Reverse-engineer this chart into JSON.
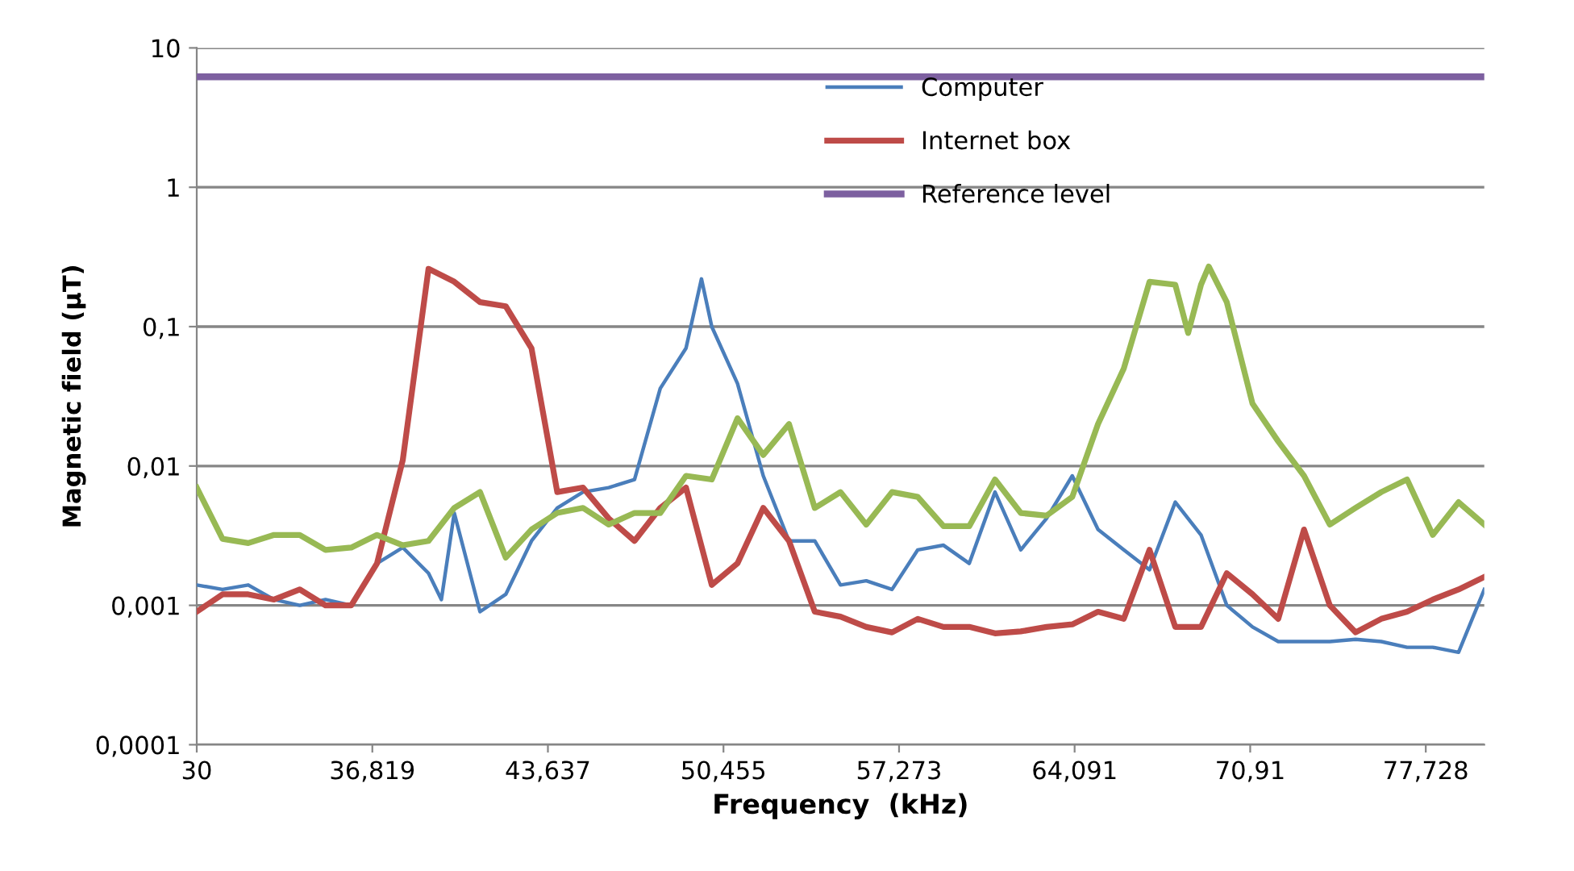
{
  "chart_data": {
    "type": "line",
    "xlabel": "Frequency  (kHz)",
    "ylabel": "Magnetic field (µT)",
    "log": "y",
    "grid": "y",
    "legend": "top",
    "marker": "none",
    "line_style": "solid",
    "xlim": [
      30,
      80
    ],
    "ylim": [
      0.0001,
      10
    ],
    "xticks": [
      30,
      {
        "value": 36.819,
        "label": "36,819"
      },
      {
        "value": 43.637,
        "label": "43,637"
      },
      {
        "value": 50.455,
        "label": "50,455"
      },
      {
        "value": 57.273,
        "label": "57,273"
      },
      {
        "value": 64.091,
        "label": "64,091"
      },
      {
        "value": 70.91,
        "label": "70,91"
      },
      {
        "value": 77.728,
        "label": "77,728"
      }
    ],
    "yticks": [
      {
        "value": 0.0001,
        "label": "0,0001"
      },
      {
        "value": 0.001,
        "label": "0,001"
      },
      {
        "value": 0.01,
        "label": "0,01"
      },
      {
        "value": 0.1,
        "label": "0,1"
      },
      1,
      10
    ],
    "series": [
      {
        "name": "Computer",
        "color": "#4a7ebb",
        "x": [
          30,
          31,
          32,
          33,
          34,
          35,
          36,
          37,
          38,
          39,
          39.5,
          40,
          41,
          42,
          43,
          44,
          45,
          46,
          47,
          48,
          49,
          49.6,
          50,
          51,
          52,
          53,
          54,
          55,
          56,
          57,
          58,
          59,
          60,
          61,
          62,
          63,
          64,
          65,
          66,
          67,
          68,
          69,
          70,
          71,
          72,
          73,
          74,
          75,
          76,
          77,
          78,
          79,
          80
        ],
        "values": [
          0.0014,
          0.0013,
          0.0014,
          0.0011,
          0.001,
          0.0011,
          0.001,
          0.002,
          0.0026,
          0.0017,
          0.0011,
          0.0046,
          0.0009,
          0.0012,
          0.0029,
          0.005,
          0.0065,
          0.007,
          0.008,
          0.036,
          0.07,
          0.22,
          0.1,
          0.039,
          0.0085,
          0.0029,
          0.0029,
          0.0014,
          0.0015,
          0.0013,
          0.0025,
          0.0027,
          0.002,
          0.0065,
          0.0025,
          0.0042,
          0.0085,
          0.0035,
          0.0025,
          0.0018,
          0.0055,
          0.0032,
          0.001,
          0.0007,
          0.00055,
          0.00055,
          0.00055,
          0.00057,
          0.00055,
          0.0005,
          0.0005,
          0.00046,
          0.0013
        ]
      },
      {
        "name": "Internet box",
        "color": "#be4b48",
        "x": [
          30,
          31,
          32,
          33,
          34,
          35,
          36,
          37,
          38,
          39,
          40,
          41,
          42,
          43,
          44,
          45,
          46,
          47,
          48,
          49,
          50,
          51,
          52,
          53,
          54,
          55,
          56,
          57,
          58,
          59,
          60,
          61,
          62,
          63,
          64,
          65,
          66,
          67,
          68,
          69,
          70,
          71,
          72,
          73,
          74,
          75,
          76,
          77,
          78,
          79,
          80
        ],
        "values": [
          0.0009,
          0.0012,
          0.0012,
          0.0011,
          0.0013,
          0.001,
          0.001,
          0.002,
          0.011,
          0.26,
          0.21,
          0.15,
          0.14,
          0.07,
          0.0065,
          0.007,
          0.0042,
          0.0029,
          0.005,
          0.007,
          0.0014,
          0.002,
          0.005,
          0.0029,
          0.0009,
          0.00083,
          0.0007,
          0.00064,
          0.0008,
          0.0007,
          0.0007,
          0.00063,
          0.00065,
          0.0007,
          0.00073,
          0.0009,
          0.0008,
          0.0025,
          0.0007,
          0.0007,
          0.0017,
          0.0012,
          0.0008,
          0.0035,
          0.001,
          0.00064,
          0.0008,
          0.0009,
          0.0011,
          0.0013,
          0.0016
        ]
      },
      {
        "color": "#98b954",
        "x": [
          30,
          31,
          32,
          33,
          34,
          35,
          36,
          37,
          38,
          39,
          40,
          41,
          42,
          43,
          44,
          45,
          46,
          47,
          48,
          49,
          50,
          51,
          52,
          53,
          54,
          55,
          56,
          57,
          58,
          59,
          60,
          61,
          62,
          63,
          64,
          65,
          66,
          67,
          68,
          68.5,
          69,
          69.3,
          70,
          71,
          72,
          73,
          74,
          75,
          76,
          77,
          78,
          79,
          80
        ],
        "values": [
          0.007,
          0.003,
          0.0028,
          0.0032,
          0.0032,
          0.0025,
          0.0026,
          0.0032,
          0.0027,
          0.0029,
          0.005,
          0.0065,
          0.0022,
          0.0035,
          0.0046,
          0.005,
          0.0038,
          0.0046,
          0.0046,
          0.0085,
          0.008,
          0.022,
          0.012,
          0.02,
          0.005,
          0.0065,
          0.0038,
          0.0065,
          0.006,
          0.0037,
          0.0037,
          0.008,
          0.0046,
          0.0044,
          0.006,
          0.02,
          0.05,
          0.21,
          0.2,
          0.09,
          0.2,
          0.27,
          0.15,
          0.028,
          0.015,
          0.0085,
          0.0038,
          0.005,
          0.0065,
          0.008,
          0.0032,
          0.0055,
          0.0038
        ]
      },
      {
        "name": "Reference level",
        "color": "#7d60a0",
        "x": [
          30,
          80
        ],
        "values": [
          6.2,
          6.2
        ]
      }
    ]
  }
}
